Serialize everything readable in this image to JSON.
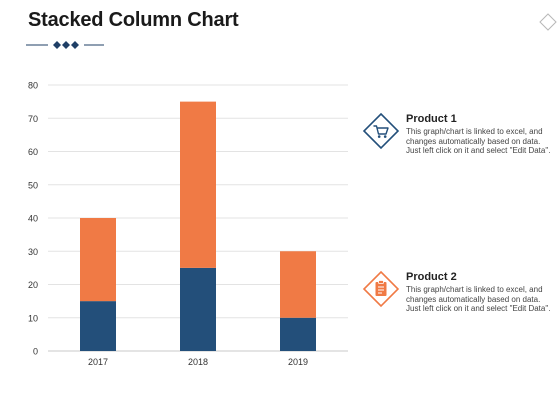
{
  "header": {
    "title": "Stacked Column Chart"
  },
  "chart_data": {
    "type": "bar",
    "stacked": true,
    "categories": [
      "2017",
      "2018",
      "2019"
    ],
    "series": [
      {
        "name": "Product 1",
        "values": [
          15,
          25,
          10
        ],
        "color": "#234f7a"
      },
      {
        "name": "Product 2",
        "values": [
          25,
          50,
          20
        ],
        "color": "#f07a45"
      }
    ],
    "ylim": [
      0,
      80
    ],
    "yticks": [
      0,
      10,
      20,
      30,
      40,
      50,
      60,
      70,
      80
    ],
    "grid": true,
    "legend_position": "right"
  },
  "legend": [
    {
      "title": "Product 1",
      "description": "This graph/chart is linked to excel, and changes automatically based on data. Just left click on it and select \"Edit Data\".",
      "icon": "shopping-cart-icon",
      "color": "#234f7a"
    },
    {
      "title": "Product 2",
      "description": "This graph/chart is linked to excel, and changes automatically based on data. Just left click on it and select \"Edit Data\".",
      "icon": "clipboard-icon",
      "color": "#f07a45"
    }
  ]
}
